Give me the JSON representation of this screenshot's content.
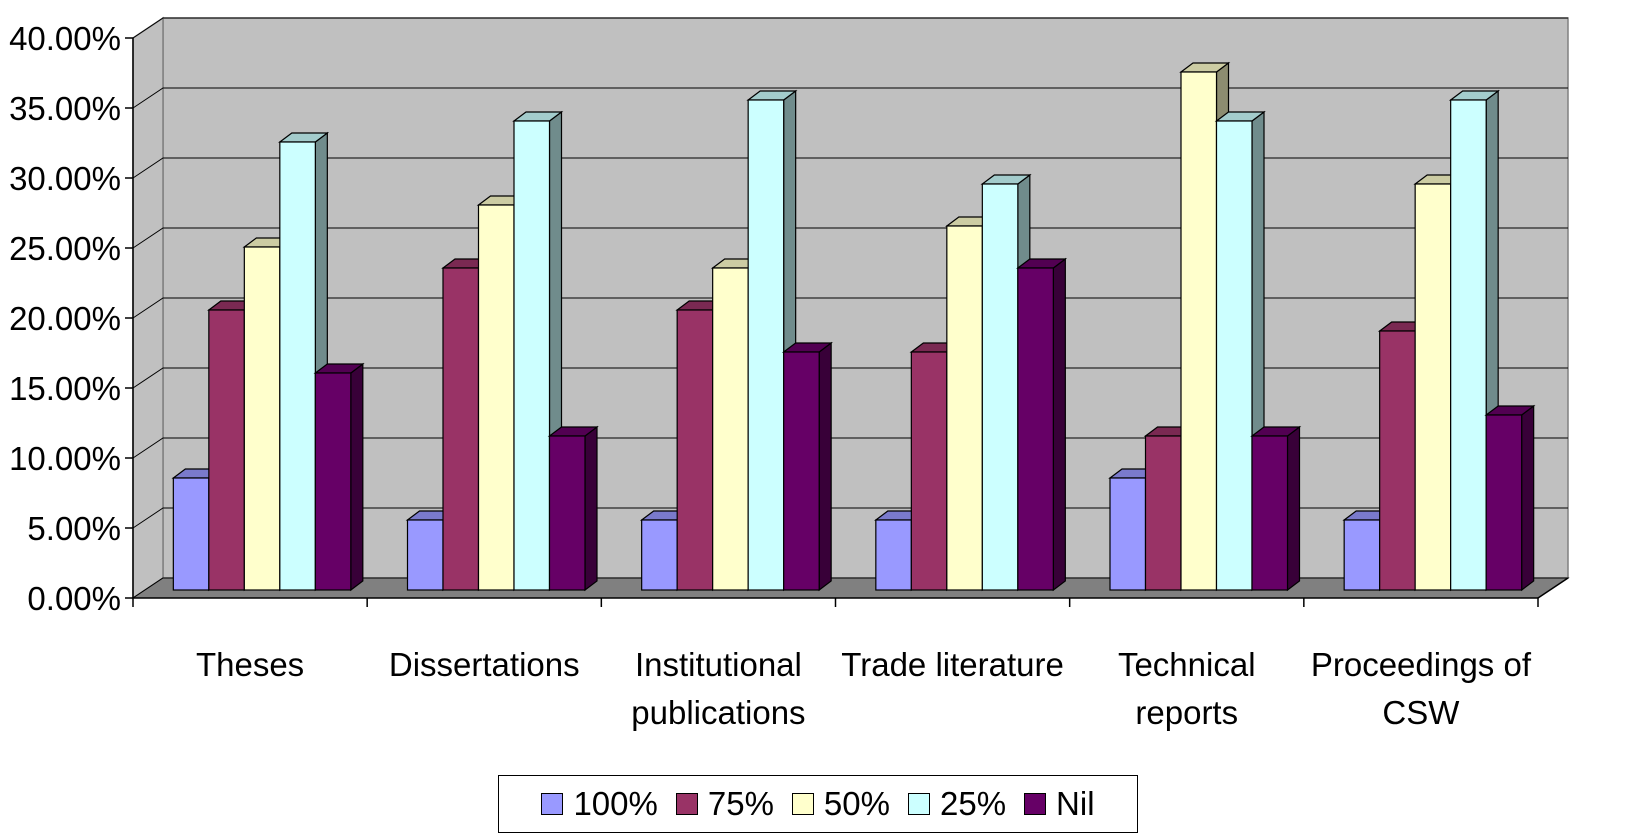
{
  "chart_data": {
    "type": "bar",
    "categories": [
      [
        "Theses"
      ],
      [
        "Dissertations"
      ],
      [
        "Institutional",
        "publications"
      ],
      [
        "Trade literature"
      ],
      [
        "Technical",
        "reports"
      ],
      [
        "Proceedings of",
        "CSW"
      ]
    ],
    "series": [
      {
        "name": "100%",
        "color": "#9999FF",
        "values": [
          8.0,
          5.0,
          5.0,
          5.0,
          8.0,
          5.0
        ]
      },
      {
        "name": "75%",
        "color": "#993366",
        "values": [
          20.0,
          23.0,
          20.0,
          17.0,
          11.0,
          18.5
        ]
      },
      {
        "name": "50%",
        "color": "#FFFFCC",
        "values": [
          24.5,
          27.5,
          23.0,
          26.0,
          37.0,
          29.0
        ]
      },
      {
        "name": "25%",
        "color": "#CCFFFF",
        "values": [
          32.0,
          33.5,
          35.0,
          29.0,
          33.5,
          35.0
        ]
      },
      {
        "name": "Nil",
        "color": "#660066",
        "values": [
          15.5,
          11.0,
          17.0,
          23.0,
          11.0,
          12.5
        ]
      }
    ],
    "yticks": [
      "0.00%",
      "5.00%",
      "10.00%",
      "15.00%",
      "20.00%",
      "25.00%",
      "30.00%",
      "35.00%",
      "40.00%"
    ],
    "ylim": [
      0,
      40
    ],
    "grid": true,
    "legend_position": "bottom",
    "style": "3d-clustered-column",
    "wall_color": "#C0C0C0",
    "floor_color": "#808080"
  }
}
